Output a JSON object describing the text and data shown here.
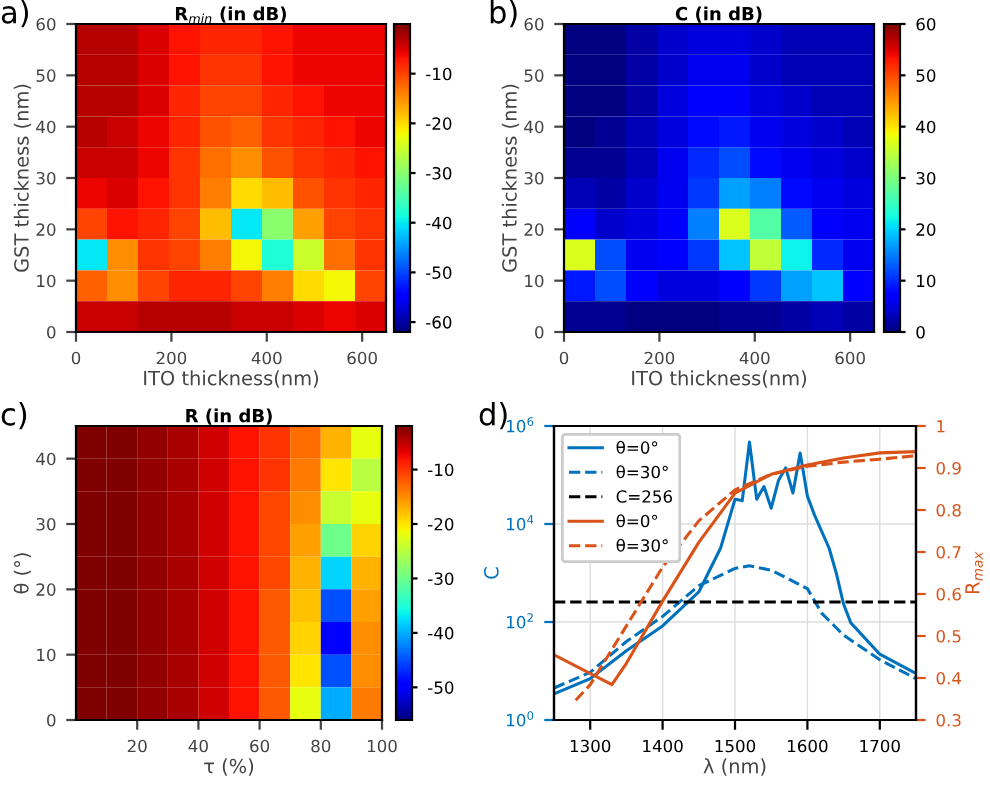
{
  "chart_data": [
    {
      "type": "heatmap",
      "title": "R$_{min}$ (in dB)",
      "xlabel": "ITO thickness(nm)",
      "ylabel": "GST thickness (nm)",
      "annotations": [
        "a)"
      ],
      "x": [
        32.5,
        97.5,
        162.5,
        227.5,
        292.5,
        357.5,
        422.5,
        487.5,
        552.5,
        617.5
      ],
      "y": [
        57,
        51,
        45,
        39,
        33,
        27,
        21,
        15,
        9,
        3
      ],
      "cells": [
        [
          -3,
          -3,
          -5,
          -7,
          -8,
          -8,
          -7,
          -6,
          -6,
          -6
        ],
        [
          -3,
          -3,
          -5,
          -7,
          -9,
          -9,
          -7,
          -6,
          -6,
          -6
        ],
        [
          -3,
          -3,
          -5,
          -8,
          -10,
          -10,
          -8,
          -7,
          -6,
          -6
        ],
        [
          -3,
          -4,
          -6,
          -8,
          -11,
          -12,
          -9,
          -8,
          -7,
          -6
        ],
        [
          -4,
          -4,
          -6,
          -9,
          -13,
          -15,
          -11,
          -9,
          -8,
          -7
        ],
        [
          -6,
          -5,
          -7,
          -9,
          -14,
          -20,
          -18,
          -11,
          -9,
          -8
        ],
        [
          -10,
          -7,
          -8,
          -10,
          -18,
          -40,
          -30,
          -16,
          -10,
          -9
        ],
        [
          -40,
          -15,
          -9,
          -10,
          -14,
          -22,
          -38,
          -25,
          -13,
          -9
        ],
        [
          -12,
          -15,
          -10,
          -8,
          -8,
          -10,
          -14,
          -20,
          -22,
          -10
        ],
        [
          -4,
          -4,
          -3,
          -3,
          -3,
          -4,
          -4,
          -5,
          -6,
          -5
        ]
      ],
      "xlim": [
        0,
        650
      ],
      "ylim": [
        0,
        60
      ],
      "xticks": [
        0,
        200,
        400,
        600
      ],
      "yticks": [
        0,
        10,
        20,
        30,
        40,
        50,
        60
      ],
      "clim": [
        -62,
        0
      ],
      "cticks": [
        -60,
        -50,
        -40,
        -30,
        -20,
        -10
      ]
    },
    {
      "type": "heatmap",
      "title": "C (in dB)",
      "xlabel": "ITO thickness(nm)",
      "ylabel": "GST thickness (nm)",
      "annotations": [
        "b)"
      ],
      "x": [
        32.5,
        97.5,
        162.5,
        227.5,
        292.5,
        357.5,
        422.5,
        487.5,
        552.5,
        617.5
      ],
      "y": [
        57,
        51,
        45,
        39,
        33,
        27,
        21,
        15,
        9,
        3
      ],
      "cells": [
        [
          0,
          0,
          2,
          4,
          5,
          5,
          4,
          3,
          3,
          3
        ],
        [
          0,
          0,
          2,
          4,
          6,
          6,
          4,
          3,
          3,
          3
        ],
        [
          0,
          0,
          2,
          5,
          7,
          7,
          5,
          4,
          3,
          3
        ],
        [
          0,
          1,
          3,
          5,
          8,
          9,
          6,
          5,
          4,
          3
        ],
        [
          1,
          1,
          3,
          6,
          10,
          12,
          8,
          6,
          5,
          4
        ],
        [
          3,
          2,
          4,
          6,
          11,
          17,
          15,
          8,
          6,
          5
        ],
        [
          7,
          4,
          5,
          7,
          15,
          37,
          27,
          13,
          7,
          6
        ],
        [
          37,
          12,
          6,
          7,
          11,
          19,
          35,
          22,
          10,
          6
        ],
        [
          9,
          12,
          7,
          5,
          5,
          7,
          11,
          17,
          19,
          7
        ],
        [
          1,
          1,
          0,
          0,
          0,
          1,
          1,
          2,
          3,
          2
        ]
      ],
      "xlim": [
        0,
        650
      ],
      "ylim": [
        0,
        60
      ],
      "xticks": [
        0,
        200,
        400,
        600
      ],
      "yticks": [
        0,
        10,
        20,
        30,
        40,
        50,
        60
      ],
      "clim": [
        0,
        60
      ],
      "cticks": [
        0,
        10,
        20,
        30,
        40,
        50,
        60
      ]
    },
    {
      "type": "heatmap",
      "title": "R (in dB)",
      "xlabel": "τ (%)",
      "ylabel": "θ (°)",
      "annotations": [
        "c)"
      ],
      "x": [
        5,
        15,
        25,
        35,
        45,
        55,
        65,
        75,
        85,
        95
      ],
      "y": [
        42.5,
        37.5,
        32.5,
        27.5,
        22.5,
        17.5,
        12.5,
        7.5,
        2.5
      ],
      "cells": [
        [
          -2,
          -2,
          -3,
          -4,
          -6,
          -8,
          -10,
          -13,
          -17,
          -22
        ],
        [
          -2,
          -2,
          -3,
          -4,
          -6,
          -8,
          -10,
          -14,
          -20,
          -25
        ],
        [
          -2,
          -2,
          -3,
          -4,
          -6,
          -8,
          -11,
          -15,
          -24,
          -22
        ],
        [
          -2,
          -2,
          -3,
          -4,
          -6,
          -8,
          -11,
          -16,
          -30,
          -19
        ],
        [
          -2,
          -2,
          -3,
          -4,
          -6,
          -8,
          -11,
          -17,
          -38,
          -17
        ],
        [
          -2,
          -2,
          -3,
          -4,
          -6,
          -8,
          -12,
          -18,
          -45,
          -16
        ],
        [
          -2,
          -2,
          -3,
          -4,
          -6,
          -8,
          -12,
          -19,
          -50,
          -15
        ],
        [
          -2,
          -2,
          -3,
          -4,
          -6,
          -8,
          -12,
          -20,
          -45,
          -15
        ],
        [
          -2,
          -2,
          -3,
          -4,
          -6,
          -8,
          -12,
          -22,
          -40,
          -14
        ]
      ],
      "xlim": [
        0,
        100
      ],
      "ylim": [
        0,
        45
      ],
      "xticks": [
        20,
        40,
        60,
        80,
        100
      ],
      "yticks": [
        0,
        10,
        20,
        30,
        40
      ],
      "clim": [
        -56,
        -2
      ],
      "cticks": [
        -50,
        -40,
        -30,
        -20,
        -10
      ]
    },
    {
      "type": "line",
      "xlabel": "λ (nm)",
      "ylabel": "C",
      "y2label": "R$_{max}$",
      "annotations": [
        "d)"
      ],
      "log": "y",
      "grid": true,
      "legend": "top left",
      "xlim": [
        1250,
        1750
      ],
      "xticks": [
        1300,
        1400,
        1500,
        1600,
        1700
      ],
      "ylim": [
        1,
        1000000
      ],
      "yticks": [
        {
          "value": 1,
          "label": "10$^{0}$"
        },
        {
          "value": 100,
          "label": "10$^{2}$"
        },
        {
          "value": 10000,
          "label": "10$^{4}$"
        },
        {
          "value": 1000000,
          "label": "10$^{6}$"
        }
      ],
      "y2lim": [
        0.3,
        1
      ],
      "y2ticks": [
        0.3,
        0.4,
        0.5,
        0.6,
        0.7,
        0.8,
        0.9,
        1
      ],
      "series": [
        {
          "name": "θ=0°",
          "color": "#0072bd",
          "line_style": "solid",
          "axis": "y",
          "x": [
            1250,
            1300,
            1350,
            1400,
            1450,
            1480,
            1500,
            1510,
            1520,
            1530,
            1540,
            1550,
            1560,
            1570,
            1580,
            1590,
            1600,
            1610,
            1630,
            1640,
            1650,
            1660,
            1700,
            1750
          ],
          "values": [
            3.4,
            7,
            26,
            83,
            410,
            3200,
            32000,
            30000,
            470000,
            32000,
            58000,
            21000,
            77000,
            140000,
            43000,
            280000,
            37000,
            15000,
            3200,
            980,
            230,
            96,
            22,
            8.9
          ]
        },
        {
          "name": "θ=30°",
          "color": "#0072bd",
          "line_style": "dashed",
          "axis": "y",
          "x": [
            1250,
            1300,
            1350,
            1400,
            1450,
            1500,
            1520,
            1550,
            1600,
            1620,
            1650,
            1700,
            1750
          ],
          "values": [
            4.5,
            9.4,
            40,
            130,
            550,
            1240,
            1400,
            1140,
            480,
            150,
            54,
            17,
            7
          ]
        },
        {
          "name": "C=256",
          "color": "#000000",
          "line_style": "dashed",
          "axis": "y",
          "x": [
            1250,
            1750
          ],
          "values": [
            256,
            256
          ]
        },
        {
          "name": "θ=0°",
          "color": "#d95319",
          "line_style": "solid",
          "axis": "y2",
          "x": [
            1250,
            1330,
            1350,
            1400,
            1450,
            1500,
            1550,
            1600,
            1650,
            1700,
            1750
          ],
          "values": [
            0.455,
            0.384,
            0.435,
            0.583,
            0.723,
            0.84,
            0.885,
            0.907,
            0.924,
            0.936,
            0.939
          ]
        },
        {
          "name": "θ=30°",
          "color": "#d95319",
          "line_style": "dashed",
          "axis": "y2",
          "x": [
            1280,
            1300,
            1350,
            1400,
            1450,
            1500,
            1550,
            1600,
            1650,
            1700,
            1750
          ],
          "values": [
            0.347,
            0.384,
            0.524,
            0.664,
            0.774,
            0.848,
            0.885,
            0.904,
            0.914,
            0.921,
            0.929
          ]
        }
      ]
    }
  ]
}
